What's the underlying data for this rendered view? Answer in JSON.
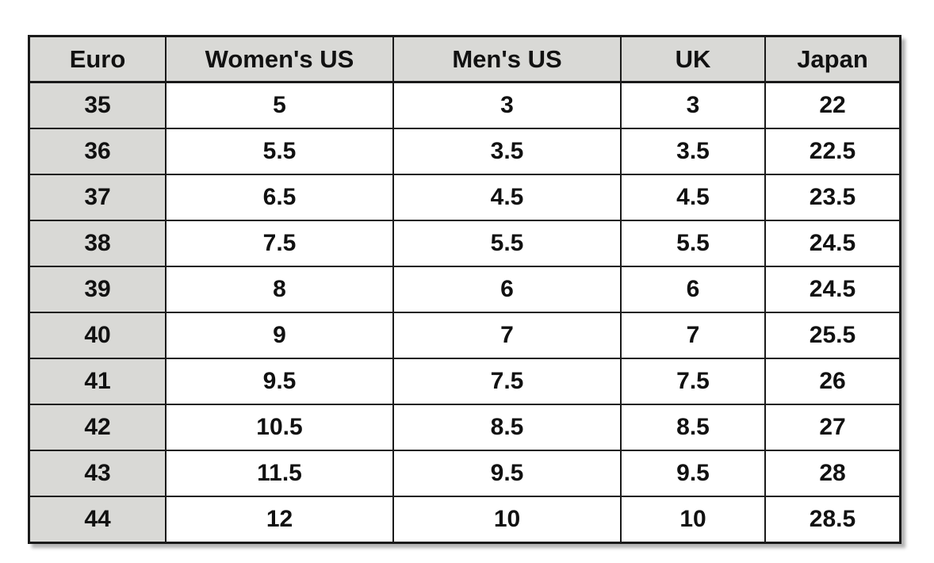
{
  "table": {
    "columns": [
      {
        "key": "euro",
        "label": "Euro"
      },
      {
        "key": "womens_us",
        "label": "Women's US"
      },
      {
        "key": "mens_us",
        "label": "Men's US"
      },
      {
        "key": "uk",
        "label": "UK"
      },
      {
        "key": "japan",
        "label": "Japan"
      }
    ],
    "rows": [
      [
        "35",
        "5",
        "3",
        "3",
        "22"
      ],
      [
        "36",
        "5.5",
        "3.5",
        "3.5",
        "22.5"
      ],
      [
        "37",
        "6.5",
        "4.5",
        "4.5",
        "23.5"
      ],
      [
        "38",
        "7.5",
        "5.5",
        "5.5",
        "24.5"
      ],
      [
        "39",
        "8",
        "6",
        "6",
        "24.5"
      ],
      [
        "40",
        "9",
        "7",
        "7",
        "25.5"
      ],
      [
        "41",
        "9.5",
        "7.5",
        "7.5",
        "26"
      ],
      [
        "42",
        "10.5",
        "8.5",
        "8.5",
        "27"
      ],
      [
        "43",
        "11.5",
        "9.5",
        "9.5",
        "28"
      ],
      [
        "44",
        "12",
        "10",
        "10",
        "28.5"
      ]
    ],
    "colors": {
      "header_bg": "#d9d9d6",
      "row_header_bg": "#d9d9d6",
      "cell_bg": "#ffffff",
      "border": "#1a1a1a",
      "text": "#111111"
    }
  }
}
